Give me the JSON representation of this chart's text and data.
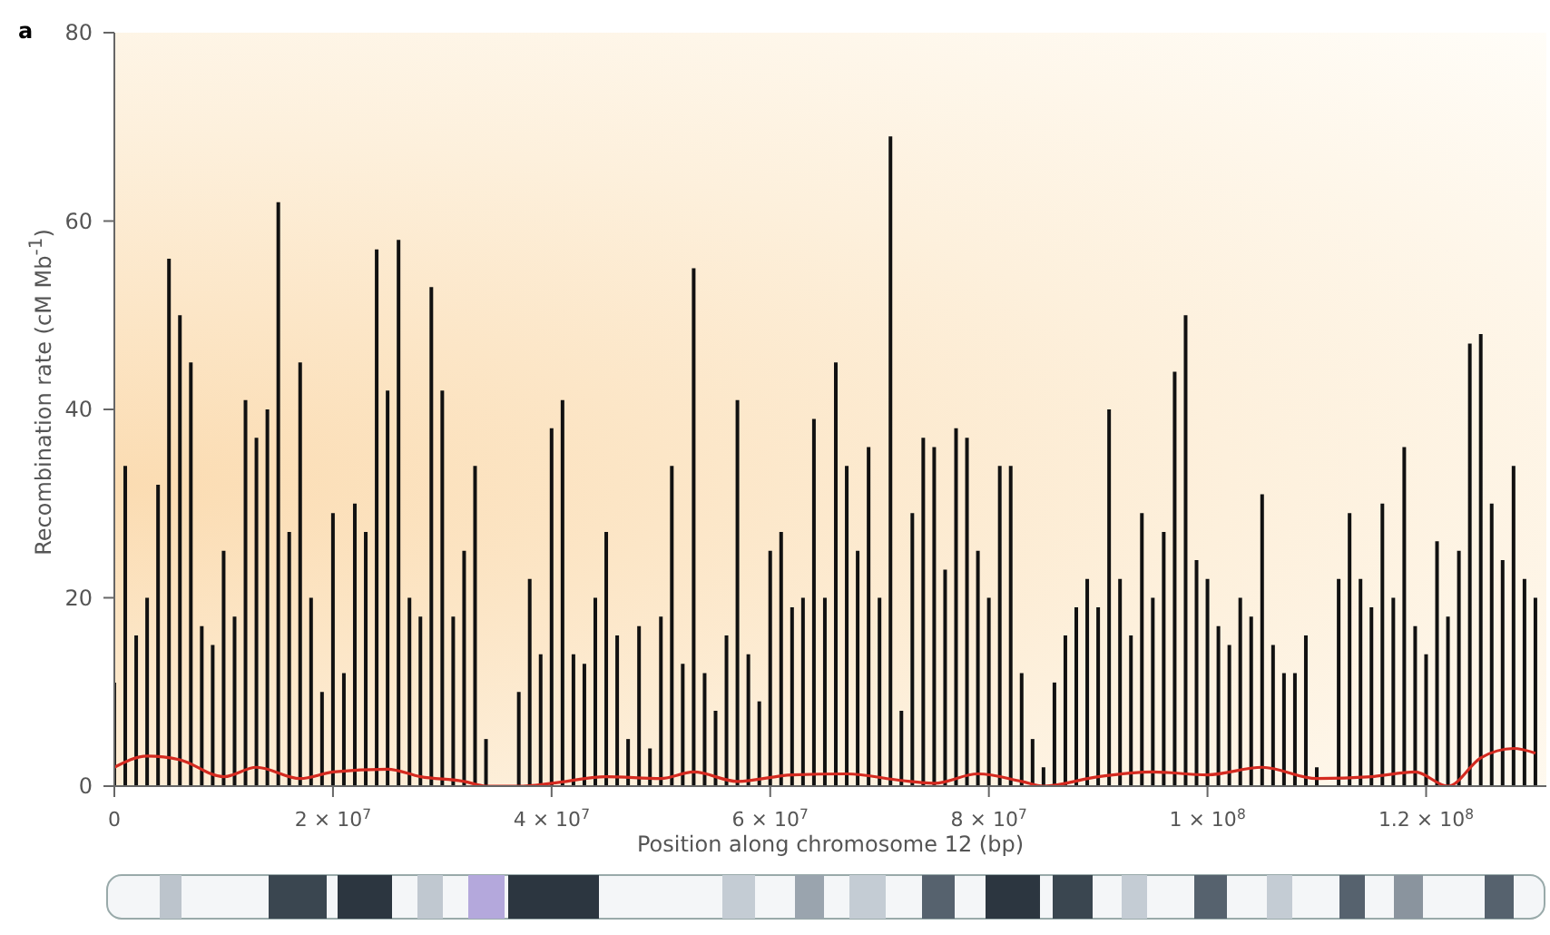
{
  "chart_data": {
    "type": "bar",
    "xlabel": "Position along chromosome 12 (bp)",
    "ylabel": "Recombination rate (cM Mb$^{-1}$)",
    "annotations": [
      "a"
    ],
    "x": [
      0,
      1000000,
      2000000,
      3000000,
      4000000,
      5000000,
      6000000,
      7000000,
      8000000,
      9000000,
      10000000,
      11000000,
      12000000,
      13000000,
      14000000,
      15000000,
      16000000,
      17000000,
      18000000,
      19000000,
      20000000,
      21000000,
      22000000,
      23000000,
      24000000,
      25000000,
      26000000,
      27000000,
      28000000,
      29000000,
      30000000,
      31000000,
      32000000,
      33000000,
      34000000,
      35000000,
      36000000,
      37000000,
      38000000,
      39000000,
      40000000,
      41000000,
      42000000,
      43000000,
      44000000,
      45000000,
      46000000,
      47000000,
      48000000,
      49000000,
      50000000,
      51000000,
      52000000,
      53000000,
      54000000,
      55000000,
      56000000,
      57000000,
      58000000,
      59000000,
      60000000,
      61000000,
      62000000,
      63000000,
      64000000,
      65000000,
      66000000,
      67000000,
      68000000,
      69000000,
      70000000,
      71000000,
      72000000,
      73000000,
      74000000,
      75000000,
      76000000,
      77000000,
      78000000,
      79000000,
      80000000,
      81000000,
      82000000,
      83000000,
      84000000,
      85000000,
      86000000,
      87000000,
      88000000,
      89000000,
      90000000,
      91000000,
      92000000,
      93000000,
      94000000,
      95000000,
      96000000,
      97000000,
      98000000,
      99000000,
      100000000,
      101000000,
      102000000,
      103000000,
      104000000,
      105000000,
      106000000,
      107000000,
      108000000,
      109000000,
      110000000,
      111000000,
      112000000,
      113000000,
      114000000,
      115000000,
      116000000,
      117000000,
      118000000,
      119000000,
      120000000,
      121000000,
      122000000,
      123000000,
      124000000,
      125000000,
      126000000,
      127000000,
      128000000,
      129000000,
      130000000
    ],
    "series": [
      {
        "color": "#111111",
        "values": [
          11,
          34,
          16,
          20,
          32,
          56,
          50,
          45,
          17,
          15,
          25,
          18,
          41,
          37,
          40,
          62,
          27,
          45,
          20,
          10,
          29,
          12,
          30,
          27,
          57,
          42,
          58,
          20,
          18,
          53,
          42,
          18,
          25,
          34,
          5,
          0,
          0,
          10,
          22,
          14,
          38,
          41,
          14,
          13,
          20,
          27,
          16,
          5,
          17,
          4,
          18,
          34,
          13,
          55,
          12,
          8,
          16,
          41,
          14,
          9,
          25,
          27,
          19,
          20,
          39,
          20,
          45,
          34,
          25,
          36,
          20,
          69,
          8,
          29,
          37,
          36,
          23,
          38,
          37,
          25,
          20,
          34,
          34,
          12,
          5,
          2,
          11,
          16,
          19,
          22,
          19,
          40,
          22,
          16,
          29,
          20,
          27,
          44,
          50,
          24,
          22,
          17,
          15,
          20,
          18,
          31,
          15,
          12,
          12,
          16,
          2,
          0,
          22,
          29,
          22,
          19,
          30,
          20,
          36,
          17,
          14,
          26,
          18,
          25,
          47,
          48,
          30,
          24,
          34,
          22,
          20
        ]
      },
      {
        "type": "line",
        "color": "#d42a20",
        "x": [
          0,
          3000000,
          6000000,
          10000000,
          13000000,
          17000000,
          20000000,
          25000000,
          28000000,
          32000000,
          34000000,
          37000000,
          40000000,
          45000000,
          50000000,
          53000000,
          57000000,
          62000000,
          67000000,
          72000000,
          75000000,
          79000000,
          83000000,
          85000000,
          90000000,
          95000000,
          100000000,
          105000000,
          110000000,
          115000000,
          119000000,
          122000000,
          125000000,
          128000000,
          130000000
        ],
        "values": [
          2,
          3.2,
          2.8,
          1,
          2,
          0.8,
          1.5,
          1.8,
          1,
          0.5,
          0,
          0,
          0.3,
          1,
          0.8,
          1.5,
          0.5,
          1.2,
          1.3,
          0.6,
          0.3,
          1.3,
          0.5,
          0,
          1,
          1.5,
          1.2,
          2,
          0.8,
          1,
          1.5,
          0,
          3,
          4,
          3.5
        ]
      }
    ],
    "xlim": [
      0,
      131000000
    ],
    "xticks": [
      0,
      {
        "value": 20000000,
        "label": "2 × 10$^{7}$"
      },
      {
        "value": 40000000,
        "label": "4 × 10$^{7}$"
      },
      {
        "value": 60000000,
        "label": "6 × 10$^{7}$"
      },
      {
        "value": 80000000,
        "label": "8 × 10$^{7}$"
      },
      {
        "value": 100000000,
        "label": "1 × 10$^{8}$"
      },
      {
        "value": 120000000,
        "label": "1.2 × 10$^{8}$"
      }
    ],
    "ylim": [
      0,
      80
    ],
    "yticks": [
      0,
      20,
      40,
      60,
      80
    ],
    "grid": false
  }
}
